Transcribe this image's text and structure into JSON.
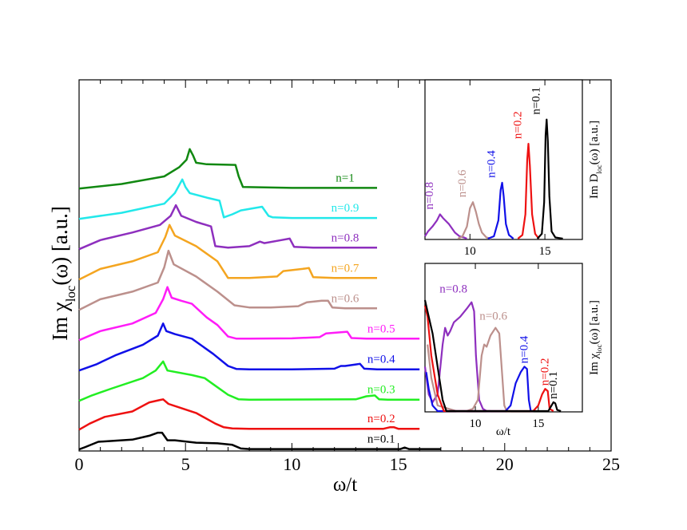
{
  "chart_data": [
    {
      "type": "line",
      "panel": "main",
      "xlabel": "ω/t",
      "ylabel_base": "Im χ",
      "ylabel_sub": "loc",
      "ylabel_tail": "(ω) [a.u.]",
      "xlim": [
        0,
        25
      ],
      "xticks": [
        {
          "v": 0,
          "label": "0"
        },
        {
          "v": 5,
          "label": "5"
        },
        {
          "v": 10,
          "label": "10"
        },
        {
          "v": 15,
          "label": "15"
        },
        {
          "v": 20,
          "label": "20"
        },
        {
          "v": 25,
          "label": "25"
        }
      ],
      "y_unit": "arbitrary, curves vertically offset",
      "grid": false,
      "series": [
        {
          "name": "n=1",
          "color": "#118811",
          "offset": 8.6,
          "x": [
            0,
            2,
            4,
            4.7,
            5.05,
            5.2,
            5.35,
            5.5,
            6,
            7.35,
            7.5,
            7.7,
            10,
            14
          ],
          "y": [
            0,
            0.15,
            0.4,
            0.7,
            0.95,
            1.3,
            1.1,
            0.85,
            0.8,
            0.78,
            0.4,
            0.05,
            0.02,
            0.02
          ]
        },
        {
          "name": "n=0.9",
          "color": "#22e8ea",
          "offset": 7.6,
          "x": [
            0,
            2,
            4,
            4.5,
            4.85,
            5.0,
            5.2,
            6,
            6.6,
            6.8,
            7.2,
            7.6,
            8.6,
            8.9,
            9.1,
            10,
            14
          ],
          "y": [
            0,
            0.2,
            0.5,
            0.85,
            1.3,
            1.05,
            0.85,
            0.7,
            0.6,
            0.05,
            0.15,
            0.28,
            0.4,
            0.1,
            0.05,
            0.03,
            0.03
          ]
        },
        {
          "name": "n=0.8",
          "color": "#8e2fbe",
          "offset": 6.6,
          "x": [
            0,
            1,
            2.5,
            3.8,
            4.3,
            4.55,
            4.8,
            5.5,
            6.2,
            6.4,
            7,
            8,
            8.5,
            8.7,
            9.5,
            9.9,
            10.1,
            11,
            14
          ],
          "y": [
            0,
            0.3,
            0.55,
            0.8,
            1.1,
            1.45,
            1.1,
            0.9,
            0.75,
            0.1,
            0.05,
            0.1,
            0.25,
            0.2,
            0.3,
            0.35,
            0.08,
            0.05,
            0.05
          ]
        },
        {
          "name": "n=0.7",
          "color": "#f4a520",
          "offset": 5.6,
          "x": [
            0,
            1,
            2.5,
            3.7,
            4.05,
            4.25,
            4.5,
            5.5,
            6.5,
            7,
            8,
            9.3,
            9.6,
            10.5,
            10.8,
            11,
            12,
            14
          ],
          "y": [
            0,
            0.35,
            0.6,
            0.9,
            1.4,
            1.8,
            1.45,
            1.1,
            0.6,
            0.05,
            0.05,
            0.1,
            0.28,
            0.35,
            0.38,
            0.08,
            0.05,
            0.05
          ]
        },
        {
          "name": "n=0.6",
          "color": "#bc908c",
          "offset": 4.6,
          "x": [
            0,
            1,
            2.5,
            3.7,
            4.0,
            4.2,
            4.45,
            5.5,
            6.5,
            7.3,
            8,
            9,
            10.3,
            10.7,
            11.4,
            11.7,
            11.9,
            12.5,
            14
          ],
          "y": [
            0,
            0.35,
            0.6,
            0.9,
            1.4,
            1.95,
            1.5,
            1.1,
            0.6,
            0.15,
            0.08,
            0.08,
            0.12,
            0.25,
            0.3,
            0.3,
            0.08,
            0.05,
            0.05
          ]
        },
        {
          "name": "n=0.5",
          "color": "#ff1cf8",
          "offset": 3.6,
          "x": [
            0,
            1,
            2.5,
            3.6,
            3.95,
            4.15,
            4.35,
            4.8,
            5.3,
            6,
            6.5,
            7,
            7.4,
            8,
            10,
            11.3,
            11.6,
            12.3,
            12.6,
            12.8,
            13.5,
            16
          ],
          "y": [
            0,
            0.3,
            0.55,
            0.9,
            1.35,
            1.75,
            1.4,
            1.3,
            1.2,
            0.75,
            0.5,
            0.12,
            0.05,
            0.05,
            0.06,
            0.1,
            0.22,
            0.26,
            0.28,
            0.07,
            0.05,
            0.05
          ]
        },
        {
          "name": "n=0.4",
          "color": "#1010e8",
          "offset": 2.6,
          "x": [
            0,
            0.8,
            1.7,
            3,
            3.7,
            3.95,
            4.1,
            4.5,
            5.3,
            6.3,
            7,
            7.4,
            8,
            10,
            12,
            12.3,
            12.5,
            13.0,
            13.2,
            13.4,
            14,
            16
          ],
          "y": [
            0,
            0.2,
            0.5,
            0.85,
            1.15,
            1.55,
            1.3,
            1.2,
            1.05,
            0.55,
            0.15,
            0.05,
            0.04,
            0.04,
            0.06,
            0.15,
            0.15,
            0.2,
            0.22,
            0.06,
            0.04,
            0.04
          ]
        },
        {
          "name": "n=0.3",
          "color": "#22ee22",
          "offset": 1.6,
          "x": [
            0,
            0.6,
            1.5,
            3,
            3.6,
            3.95,
            4.15,
            5.3,
            5.9,
            6.3,
            7,
            7.5,
            8,
            13,
            13.5,
            13.9,
            14.1,
            14.5,
            16
          ],
          "y": [
            0,
            0.18,
            0.4,
            0.75,
            1.0,
            1.3,
            1.0,
            0.85,
            0.75,
            0.55,
            0.2,
            0.05,
            0.04,
            0.05,
            0.15,
            0.18,
            0.05,
            0.04,
            0.04
          ]
        },
        {
          "name": "n=0.2",
          "color": "#ee1111",
          "offset": 0.65,
          "x": [
            0,
            0.5,
            1.2,
            2.5,
            3.3,
            3.8,
            3.95,
            4.2,
            5.5,
            6.4,
            6.8,
            7.2,
            8,
            12,
            14.3,
            14.6,
            14.8,
            15,
            16
          ],
          "y": [
            0,
            0.2,
            0.42,
            0.6,
            0.9,
            0.98,
            1.0,
            0.85,
            0.55,
            0.2,
            0.08,
            0.04,
            0.03,
            0.03,
            0.03,
            0.08,
            0.08,
            0.03,
            0.03
          ]
        },
        {
          "name": "n=0.1",
          "color": "#000000",
          "offset": 0,
          "x": [
            0,
            0.3,
            0.9,
            2.5,
            3.3,
            3.7,
            3.9,
            4.15,
            4.5,
            5.5,
            6.5,
            7.2,
            7.6,
            8,
            10,
            15.1,
            15.3,
            15.5,
            17
          ],
          "y": [
            0,
            0.08,
            0.25,
            0.32,
            0.45,
            0.55,
            0.55,
            0.3,
            0.3,
            0.22,
            0.2,
            0.15,
            0.03,
            0.01,
            0.01,
            0.01,
            0.06,
            0.01,
            0.01
          ]
        }
      ]
    },
    {
      "type": "line",
      "panel": "inset-top",
      "xlabel": "",
      "ylabel_base": "Im D",
      "ylabel_sub": "loc",
      "ylabel_tail": "(ω) [a.u.]",
      "xlim": [
        7,
        17.5
      ],
      "ylim": [
        0,
        1.05
      ],
      "xticks": [
        {
          "v": 10,
          "label": "10"
        },
        {
          "v": 15,
          "label": "15"
        }
      ],
      "grid": false,
      "series": [
        {
          "name": "n=0.8",
          "color": "#8e2fbe",
          "x": [
            7,
            7.2,
            7.5,
            7.8,
            8,
            8.2,
            8.6,
            9.0,
            9.3,
            9.6,
            9.8
          ],
          "y": [
            0.02,
            0.06,
            0.1,
            0.15,
            0.2,
            0.17,
            0.12,
            0.05,
            0.02,
            0.01,
            0.0
          ]
        },
        {
          "name": "n=0.6",
          "color": "#bc908c",
          "x": [
            9.2,
            9.5,
            9.8,
            10.0,
            10.2,
            10.4,
            10.6,
            10.8,
            11.1,
            11.4
          ],
          "y": [
            0.0,
            0.02,
            0.1,
            0.25,
            0.3,
            0.22,
            0.12,
            0.05,
            0.01,
            0.0
          ]
        },
        {
          "name": "n=0.4",
          "color": "#1010e8",
          "x": [
            11.2,
            11.6,
            11.9,
            12.05,
            12.15,
            12.25,
            12.4,
            12.6,
            12.9
          ],
          "y": [
            0.0,
            0.02,
            0.15,
            0.4,
            0.46,
            0.35,
            0.12,
            0.03,
            0.0
          ]
        },
        {
          "name": "n=0.2",
          "color": "#ee1111",
          "x": [
            13.2,
            13.5,
            13.7,
            13.82,
            13.9,
            14.0,
            14.15,
            14.35,
            14.6
          ],
          "y": [
            0.0,
            0.03,
            0.2,
            0.65,
            0.78,
            0.6,
            0.2,
            0.04,
            0.0
          ]
        },
        {
          "name": "n=0.1",
          "color": "#000000",
          "x": [
            14.5,
            14.8,
            14.95,
            15.05,
            15.12,
            15.2,
            15.3,
            15.45,
            15.7,
            16.2
          ],
          "y": [
            0.0,
            0.04,
            0.3,
            0.85,
            0.98,
            0.8,
            0.35,
            0.06,
            0.01,
            0.0
          ]
        }
      ]
    },
    {
      "type": "line",
      "panel": "inset-bottom",
      "xlabel": "ω/t",
      "ylabel_base": "Im χ",
      "ylabel_sub": "loc",
      "ylabel_tail": "(ω) [a.u.]",
      "xlim": [
        6,
        18.5
      ],
      "ylim": [
        0,
        1.05
      ],
      "xticks": [
        {
          "v": 10,
          "label": "10"
        },
        {
          "v": 15,
          "label": "15"
        }
      ],
      "grid": false,
      "series": [
        {
          "name": "n=0.8",
          "color": "#8e2fbe",
          "x": [
            6,
            6.3,
            6.6,
            7.0,
            7.4,
            7.6,
            7.8,
            8.0,
            8.3,
            8.8,
            9.3,
            9.7,
            9.9,
            10.05,
            10.3,
            10.6,
            10.9,
            11.2
          ],
          "y": [
            0.4,
            0.15,
            0.08,
            0.15,
            0.6,
            0.75,
            0.68,
            0.72,
            0.8,
            0.85,
            0.92,
            0.98,
            0.9,
            0.5,
            0.1,
            0.02,
            0.0,
            0.0
          ]
        },
        {
          "name": "n=0.6",
          "color": "#bc908c",
          "x": [
            6.2,
            6.5,
            7.0,
            8.5,
            9.3,
            9.8,
            10.2,
            10.5,
            10.7,
            10.9,
            11.2,
            11.6,
            11.9,
            12.15,
            12.3,
            12.5,
            12.8
          ],
          "y": [
            0.6,
            0.3,
            0.05,
            0.0,
            0.0,
            0.02,
            0.1,
            0.5,
            0.6,
            0.58,
            0.68,
            0.75,
            0.7,
            0.3,
            0.05,
            0.0,
            0.0
          ]
        },
        {
          "name": "n=0.4",
          "color": "#1010e8",
          "x": [
            6.1,
            6.3,
            6.6,
            7.0,
            12.4,
            12.8,
            13.2,
            13.6,
            13.9,
            14.1,
            14.25,
            14.4,
            14.6
          ],
          "y": [
            0.35,
            0.2,
            0.05,
            0.0,
            0.0,
            0.05,
            0.25,
            0.35,
            0.4,
            0.38,
            0.1,
            0.0,
            0.0
          ]
        },
        {
          "name": "n=0.2",
          "color": "#ee1111",
          "x": [
            6.0,
            6.2,
            6.5,
            7.0,
            7.5,
            14.6,
            15.0,
            15.3,
            15.55,
            15.75,
            15.9,
            16.2
          ],
          "y": [
            0.95,
            0.85,
            0.5,
            0.15,
            0.0,
            0.0,
            0.05,
            0.15,
            0.2,
            0.18,
            0.02,
            0.0
          ]
        },
        {
          "name": "n=0.1",
          "color": "#000000",
          "x": [
            6.0,
            6.3,
            6.6,
            7.0,
            7.4,
            7.7,
            15.8,
            16.0,
            16.2,
            16.35,
            16.5,
            16.8
          ],
          "y": [
            1.0,
            0.85,
            0.7,
            0.4,
            0.1,
            0.0,
            0.0,
            0.04,
            0.08,
            0.07,
            0.01,
            0.0
          ]
        }
      ]
    }
  ]
}
